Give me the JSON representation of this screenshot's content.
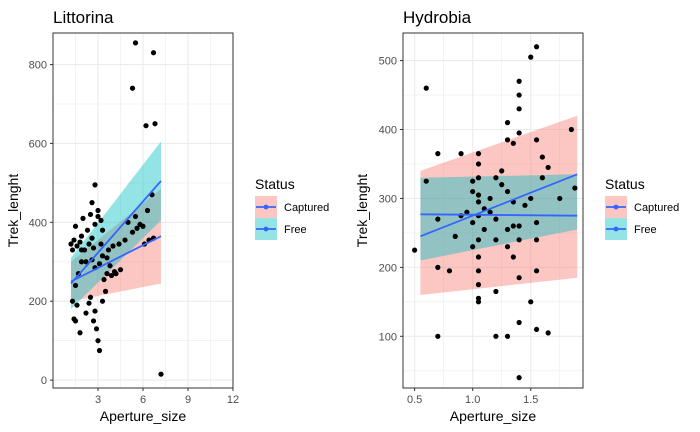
{
  "chart_data": [
    {
      "type": "scatter",
      "title": "Littorina",
      "xlabel": "Aperture_size",
      "ylabel": "Trek_lenght",
      "xlim": [
        0,
        12
      ],
      "ylim": [
        -20,
        880
      ],
      "xticks": [
        3,
        6,
        9,
        12
      ],
      "yticks": [
        0,
        200,
        400,
        600,
        800
      ],
      "grid": true,
      "points": [
        [
          1.2,
          345
        ],
        [
          1.4,
          355
        ],
        [
          1.3,
          330
        ],
        [
          1.6,
          340
        ],
        [
          1.8,
          350
        ],
        [
          1.9,
          365
        ],
        [
          1.5,
          390
        ],
        [
          2.0,
          410
        ],
        [
          2.5,
          420
        ],
        [
          2.8,
          395
        ],
        [
          3.0,
          415
        ],
        [
          3.2,
          405
        ],
        [
          3.3,
          380
        ],
        [
          2.3,
          380
        ],
        [
          2.6,
          360
        ],
        [
          2.1,
          330
        ],
        [
          1.9,
          300
        ],
        [
          1.7,
          270
        ],
        [
          1.5,
          240
        ],
        [
          1.3,
          200
        ],
        [
          1.6,
          190
        ],
        [
          1.4,
          155
        ],
        [
          1.5,
          150
        ],
        [
          1.8,
          120
        ],
        [
          2.2,
          170
        ],
        [
          2.5,
          210
        ],
        [
          2.4,
          195
        ],
        [
          2.8,
          175
        ],
        [
          2.7,
          150
        ],
        [
          2.9,
          130
        ],
        [
          3.0,
          100
        ],
        [
          3.1,
          75
        ],
        [
          3.3,
          200
        ],
        [
          3.5,
          225
        ],
        [
          3.4,
          255
        ],
        [
          3.6,
          270
        ],
        [
          3.9,
          265
        ],
        [
          4.2,
          270
        ],
        [
          4.5,
          280
        ],
        [
          4.1,
          275
        ],
        [
          3.8,
          290
        ],
        [
          3.3,
          315
        ],
        [
          3.6,
          310
        ],
        [
          3.7,
          330
        ],
        [
          4.0,
          340
        ],
        [
          4.4,
          345
        ],
        [
          4.8,
          355
        ],
        [
          5.3,
          375
        ],
        [
          5.6,
          385
        ],
        [
          6.0,
          390
        ],
        [
          6.1,
          345
        ],
        [
          6.4,
          355
        ],
        [
          6.7,
          360
        ],
        [
          5.8,
          395
        ],
        [
          5.5,
          415
        ],
        [
          6.3,
          430
        ],
        [
          6.6,
          470
        ],
        [
          5.0,
          400
        ],
        [
          2.2,
          300
        ],
        [
          2.6,
          305
        ],
        [
          2.8,
          285
        ],
        [
          3.1,
          295
        ],
        [
          1.9,
          330
        ],
        [
          2.4,
          345
        ],
        [
          2.7,
          335
        ],
        [
          3.2,
          345
        ],
        [
          2.8,
          495
        ],
        [
          2.6,
          450
        ],
        [
          3.0,
          430
        ],
        [
          5.3,
          740
        ],
        [
          5.5,
          855
        ],
        [
          6.2,
          645
        ],
        [
          6.8,
          650
        ],
        [
          6.7,
          830
        ],
        [
          7.2,
          15
        ]
      ],
      "series": [
        {
          "name": "Captured",
          "x": [
            1.2,
            7.2
          ],
          "y": [
            250,
            365
          ],
          "ci_lower": [
            200,
            245
          ],
          "ci_upper": [
            300,
            485
          ]
        },
        {
          "name": "Free",
          "x": [
            1.2,
            7.2
          ],
          "y": [
            245,
            505
          ],
          "ci_lower": [
            180,
            405
          ],
          "ci_upper": [
            310,
            605
          ]
        }
      ]
    },
    {
      "type": "scatter",
      "title": "Hydrobia",
      "xlabel": "Aperture_size",
      "ylabel": "Trek_lenght",
      "xlim": [
        0.4,
        1.95
      ],
      "ylim": [
        25,
        540
      ],
      "xticks": [
        0.5,
        1.0,
        1.5
      ],
      "yticks": [
        100,
        200,
        300,
        400,
        500
      ],
      "grid": true,
      "points": [
        [
          0.5,
          225
        ],
        [
          0.6,
          460
        ],
        [
          0.6,
          325
        ],
        [
          0.7,
          365
        ],
        [
          0.7,
          270
        ],
        [
          0.7,
          100
        ],
        [
          0.7,
          200
        ],
        [
          0.8,
          195
        ],
        [
          0.85,
          245
        ],
        [
          0.9,
          365
        ],
        [
          0.9,
          275
        ],
        [
          0.95,
          280
        ],
        [
          1.0,
          325
        ],
        [
          1.0,
          310
        ],
        [
          1.0,
          265
        ],
        [
          1.0,
          230
        ],
        [
          1.05,
          365
        ],
        [
          1.05,
          350
        ],
        [
          1.05,
          330
        ],
        [
          1.05,
          305
        ],
        [
          1.05,
          295
        ],
        [
          1.05,
          275
        ],
        [
          1.05,
          240
        ],
        [
          1.05,
          215
        ],
        [
          1.05,
          195
        ],
        [
          1.05,
          175
        ],
        [
          1.05,
          155
        ],
        [
          1.05,
          150
        ],
        [
          1.1,
          285
        ],
        [
          1.1,
          255
        ],
        [
          1.15,
          300
        ],
        [
          1.15,
          280
        ],
        [
          1.2,
          330
        ],
        [
          1.2,
          270
        ],
        [
          1.2,
          240
        ],
        [
          1.2,
          165
        ],
        [
          1.2,
          100
        ],
        [
          1.25,
          320
        ],
        [
          1.25,
          340
        ],
        [
          1.3,
          410
        ],
        [
          1.3,
          385
        ],
        [
          1.3,
          310
        ],
        [
          1.3,
          255
        ],
        [
          1.3,
          230
        ],
        [
          1.3,
          100
        ],
        [
          1.35,
          380
        ],
        [
          1.35,
          295
        ],
        [
          1.35,
          260
        ],
        [
          1.35,
          215
        ],
        [
          1.4,
          470
        ],
        [
          1.4,
          450
        ],
        [
          1.4,
          430
        ],
        [
          1.4,
          395
        ],
        [
          1.4,
          260
        ],
        [
          1.4,
          240
        ],
        [
          1.4,
          185
        ],
        [
          1.4,
          120
        ],
        [
          1.4,
          40
        ],
        [
          1.45,
          290
        ],
        [
          1.5,
          505
        ],
        [
          1.5,
          300
        ],
        [
          1.5,
          150
        ],
        [
          1.55,
          520
        ],
        [
          1.55,
          385
        ],
        [
          1.55,
          265
        ],
        [
          1.55,
          240
        ],
        [
          1.55,
          195
        ],
        [
          1.55,
          110
        ],
        [
          1.6,
          360
        ],
        [
          1.6,
          330
        ],
        [
          1.65,
          345
        ],
        [
          1.65,
          105
        ],
        [
          1.75,
          300
        ],
        [
          1.85,
          400
        ],
        [
          1.88,
          315
        ]
      ],
      "series": [
        {
          "name": "Captured",
          "x": [
            0.55,
            1.9
          ],
          "y": [
            277,
            275
          ],
          "ci_lower": [
            160,
            185
          ],
          "ci_upper": [
            340,
            420
          ]
        },
        {
          "name": "Free",
          "x": [
            0.55,
            1.9
          ],
          "y": [
            245,
            335
          ],
          "ci_lower": [
            210,
            255
          ],
          "ci_upper": [
            330,
            335
          ]
        }
      ]
    }
  ],
  "legend": {
    "title": "Status",
    "items": [
      {
        "label": "Captured",
        "fill": "#F8766D",
        "line": "#3366FF"
      },
      {
        "label": "Free",
        "fill": "#00BFC4",
        "line": "#3366FF"
      }
    ]
  },
  "colors": {
    "point": "#000000",
    "fit_line": "#3366FF",
    "captured_band": "#F8766D",
    "free_band": "#00BFC4",
    "grid": "#EBEBEB",
    "axis_text": "#4D4D4D"
  }
}
